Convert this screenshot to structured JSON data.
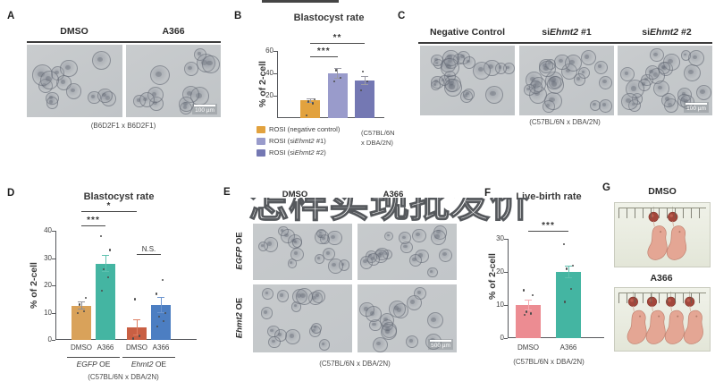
{
  "watermark": {
    "text": "怎样实现批发价"
  },
  "panels": {
    "A": {
      "label": "A",
      "col_headers": [
        "DMSO",
        "A366"
      ],
      "caption": "(B6D2F1 x B6D2F1)",
      "scale_bar": "100 µm"
    },
    "B": {
      "label": "B",
      "legend": [
        {
          "pre": "ROSI (negative control)",
          "it": "",
          "post": "",
          "color": "#E2A23E"
        },
        {
          "pre": "ROSI (si",
          "it": "Ehmt2",
          "post": " #1)",
          "color": "#999BCB"
        },
        {
          "pre": "ROSI (si",
          "it": "Ehmt2",
          "post": " #2)",
          "color": "#7478B3"
        }
      ],
      "caption_line1": "(C57BL/6N",
      "caption_line2": "x DBA/2N)"
    },
    "C": {
      "label": "C",
      "headers": [
        {
          "pre": "Negative Control",
          "it": "",
          "post": ""
        },
        {
          "pre": "si",
          "it": "Ehmt2",
          "post": " #1"
        },
        {
          "pre": "si",
          "it": "Ehmt2",
          "post": " #2"
        }
      ],
      "caption": "(C57BL/6N x DBA/2N)",
      "scale_bar": "100 µm"
    },
    "D": {
      "label": "D"
    },
    "E": {
      "label": "E",
      "col_headers": [
        "DMSO",
        "A366"
      ],
      "row_headers": [
        {
          "pre": "",
          "it": "EGFP",
          "post": " OE"
        },
        {
          "pre": "",
          "it": "Ehmt2",
          "post": " OE"
        }
      ],
      "caption": "(C57BL/6N x DBA/2N)",
      "scale_bar": "500 µm"
    },
    "F": {
      "label": "F"
    },
    "G": {
      "label": "G",
      "photo_labels": [
        "DMSO",
        "A366"
      ]
    }
  },
  "chart_data": [
    {
      "type": "bar",
      "title": "Blastocyst rate",
      "ylabel": "% of 2-cell",
      "ylim": [
        0,
        60
      ],
      "yticks": [
        20,
        40,
        60
      ],
      "bars": [
        {
          "label": "",
          "value": 16,
          "err": 2,
          "color": "#E2A23E",
          "err_color": "#9a9aa4",
          "dots": [
            2.5,
            13.5,
            15,
            17
          ]
        },
        {
          "label": "",
          "value": 40,
          "err": 5,
          "color": "#999BCB",
          "err_color": "#9a9aa4",
          "dots": [
            33,
            36,
            43
          ]
        },
        {
          "label": "",
          "value": 34,
          "err": 4,
          "color": "#7478B3",
          "err_color": "#9a9aa4",
          "dots": [
            25,
            33,
            42
          ]
        }
      ],
      "sig": [
        {
          "a": 0,
          "b": 1,
          "label": "***"
        },
        {
          "a": 0,
          "b": 2,
          "label": "**"
        }
      ],
      "caption": ""
    },
    {
      "type": "bar",
      "title": "Blastocyst rate",
      "ylabel": "% of 2-cell",
      "ylim": [
        0,
        40
      ],
      "yticks": [
        0,
        10,
        20,
        30,
        40
      ],
      "bars": [
        {
          "label": "DMSO",
          "value": 12.5,
          "err": 1.5,
          "color": "#D9A25A",
          "err_color": "#8f8f98",
          "dots": [
            10,
            10.5,
            13,
            15.5
          ]
        },
        {
          "label": "A366",
          "value": 28,
          "err": 3,
          "color": "#44B5A2",
          "err_color": "#5cc0ae",
          "dots": [
            18,
            23,
            26,
            33,
            38
          ]
        },
        {
          "label": "DMSO",
          "value": 4.5,
          "err": 3,
          "color": "#C95F43",
          "err_color": "#dd7e62",
          "dots": [
            0.5,
            1.5,
            15
          ]
        },
        {
          "label": "A366",
          "value": 12.8,
          "err": 3,
          "color": "#4C7EC2",
          "err_color": "#6d95cf",
          "dots": [
            5,
            7,
            8.5,
            10,
            17,
            22
          ]
        }
      ],
      "groups": [
        {
          "pre": "",
          "it": "EGFP",
          "post": " OE",
          "from": 0,
          "to": 1
        },
        {
          "pre": "",
          "it": "Ehmt2",
          "post": " OE",
          "from": 2,
          "to": 3
        }
      ],
      "sig": [
        {
          "a": 0,
          "b": 1,
          "label": "***"
        },
        {
          "a": 0,
          "b": 2,
          "label": "*"
        },
        {
          "a": 2,
          "b": 3,
          "label": "N.S."
        }
      ],
      "caption": "(C57BL/6N x DBA/2N)"
    },
    {
      "type": "bar",
      "title": "Live-birth rate",
      "ylabel": "% of 2-cell",
      "ylim": [
        0,
        30
      ],
      "yticks": [
        0,
        10,
        20,
        30
      ],
      "bars": [
        {
          "label": "DMSO",
          "value": 10,
          "err": 1.5,
          "color": "#EC8C92",
          "err_color": "#f4aab0",
          "dots": [
            7,
            7.5,
            8,
            13,
            14.5
          ]
        },
        {
          "label": "A366",
          "value": 20,
          "err": 2,
          "color": "#44B5A2",
          "err_color": "#5cc0ae",
          "dots": [
            11,
            15,
            21,
            22,
            28.5
          ]
        }
      ],
      "sig": [
        {
          "a": 0,
          "b": 1,
          "label": "***"
        }
      ],
      "caption": "(C57BL/6N x DBA/2N)"
    }
  ]
}
